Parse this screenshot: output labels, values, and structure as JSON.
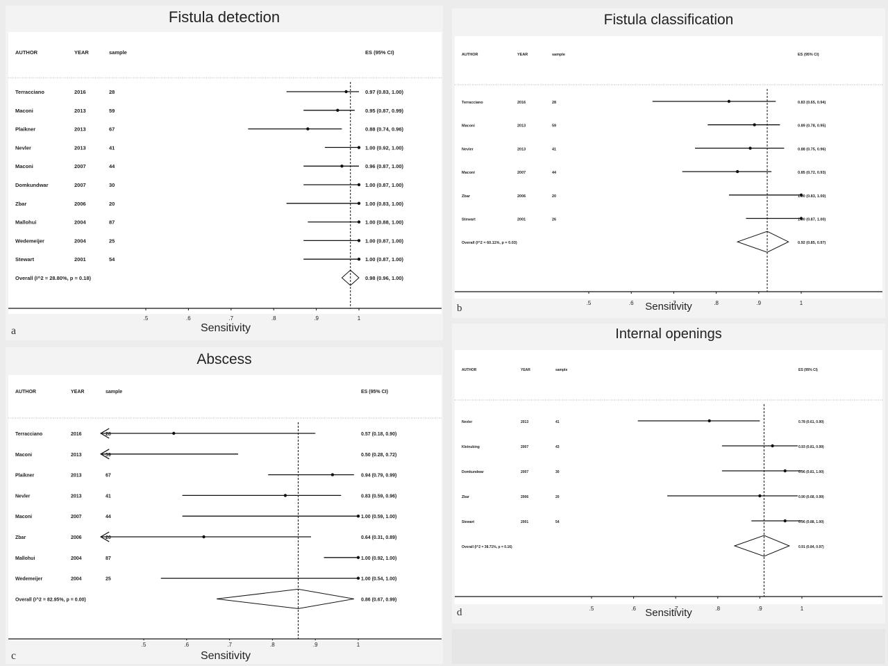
{
  "chart_data": [
    {
      "panel_letter": "a",
      "type": "forest",
      "title": "Fistula detection",
      "xlabel": "Sensitivity",
      "xlim": [
        0.2,
        1.0
      ],
      "x_ticks": [
        ".5",
        ".6",
        ".7",
        ".8",
        ".9",
        "1"
      ],
      "x_tick_values": [
        0.5,
        0.6,
        0.7,
        0.8,
        0.9,
        1.0
      ],
      "reference_line": 0.98,
      "headers": {
        "author": "AUTHOR",
        "year": "YEAR",
        "sample": "sample",
        "es": "ES (95% CI)"
      },
      "studies": [
        {
          "author": "Terracciano",
          "year": "2016",
          "sample": "28",
          "es": 0.97,
          "lo": 0.83,
          "hi": 1.0,
          "es_label": "0.97 (0.83, 1.00)"
        },
        {
          "author": "Maconi",
          "year": "2013",
          "sample": "59",
          "es": 0.95,
          "lo": 0.87,
          "hi": 0.99,
          "es_label": "0.95 (0.87, 0.99)"
        },
        {
          "author": "Plaikner",
          "year": "2013",
          "sample": "67",
          "es": 0.88,
          "lo": 0.74,
          "hi": 0.96,
          "es_label": "0.88 (0.74, 0.96)"
        },
        {
          "author": "Nevler",
          "year": "2013",
          "sample": "41",
          "es": 1.0,
          "lo": 0.92,
          "hi": 1.0,
          "es_label": "1.00 (0.92, 1.00)"
        },
        {
          "author": "Maconi",
          "year": "2007",
          "sample": "44",
          "es": 0.96,
          "lo": 0.87,
          "hi": 1.0,
          "es_label": "0.96 (0.87, 1.00)"
        },
        {
          "author": "Domkundwar",
          "year": "2007",
          "sample": "30",
          "es": 1.0,
          "lo": 0.87,
          "hi": 1.0,
          "es_label": "1.00 (0.87, 1.00)"
        },
        {
          "author": "Zbar",
          "year": "2006",
          "sample": "20",
          "es": 1.0,
          "lo": 0.83,
          "hi": 1.0,
          "es_label": "1.00 (0.83, 1.00)"
        },
        {
          "author": "Mallohui",
          "year": "2004",
          "sample": "87",
          "es": 1.0,
          "lo": 0.88,
          "hi": 1.0,
          "es_label": "1.00 (0.88, 1.00)"
        },
        {
          "author": "Wedemeijer",
          "year": "2004",
          "sample": "25",
          "es": 1.0,
          "lo": 0.87,
          "hi": 1.0,
          "es_label": "1.00 (0.87, 1.00)"
        },
        {
          "author": "Stewart",
          "year": "2001",
          "sample": "54",
          "es": 1.0,
          "lo": 0.87,
          "hi": 1.0,
          "es_label": "1.00 (0.87, 1.00)"
        }
      ],
      "overall": {
        "label": "Overall  (I^2 = 28.80%, p = 0.18)",
        "es": 0.98,
        "lo": 0.96,
        "hi": 1.0,
        "es_label": "0.98 (0.96, 1.00)"
      }
    },
    {
      "panel_letter": "b",
      "type": "forest",
      "title": "Fistula classification",
      "xlabel": "Sensitivity",
      "xlim": [
        0.2,
        1.0
      ],
      "x_ticks": [
        ".5",
        ".6",
        ".7",
        ".8",
        ".9",
        "1"
      ],
      "x_tick_values": [
        0.5,
        0.6,
        0.7,
        0.8,
        0.9,
        1.0
      ],
      "reference_line": 0.92,
      "headers": {
        "author": "AUTHOR",
        "year": "YEAR",
        "sample": "sample",
        "es": "ES (95% CI)"
      },
      "studies": [
        {
          "author": "Terracciano",
          "year": "2016",
          "sample": "28",
          "es": 0.83,
          "lo": 0.65,
          "hi": 0.94,
          "es_label": "0.83 (0.65, 0.94)"
        },
        {
          "author": "Maconi",
          "year": "2013",
          "sample": "59",
          "es": 0.89,
          "lo": 0.78,
          "hi": 0.95,
          "es_label": "0.89 (0.78, 0.95)"
        },
        {
          "author": "Nevler",
          "year": "2013",
          "sample": "41",
          "es": 0.88,
          "lo": 0.75,
          "hi": 0.96,
          "es_label": "0.88 (0.75, 0.96)"
        },
        {
          "author": "Maconi",
          "year": "2007",
          "sample": "44",
          "es": 0.85,
          "lo": 0.72,
          "hi": 0.93,
          "es_label": "0.85 (0.72, 0.93)"
        },
        {
          "author": "Zbar",
          "year": "2006",
          "sample": "20",
          "es": 1.0,
          "lo": 0.83,
          "hi": 1.0,
          "es_label": "1.00 (0.83, 1.00)"
        },
        {
          "author": "Stewart",
          "year": "2001",
          "sample": "26",
          "es": 1.0,
          "lo": 0.87,
          "hi": 1.0,
          "es_label": "1.00 (0.87, 1.00)"
        }
      ],
      "overall": {
        "label": "Overall  (I^2 = 60.11%, p = 0.03)",
        "es": 0.92,
        "lo": 0.85,
        "hi": 0.97,
        "es_label": "0.92 (0.85, 0.97)"
      }
    },
    {
      "panel_letter": "c",
      "type": "forest",
      "title": "Abscess",
      "xlabel": "Sensitivity",
      "xlim": [
        0.2,
        1.0
      ],
      "x_ticks": [
        ".5",
        ".6",
        ".7",
        ".8",
        ".9",
        "1"
      ],
      "x_tick_values": [
        0.5,
        0.6,
        0.7,
        0.8,
        0.9,
        1.0
      ],
      "reference_line": 0.86,
      "headers": {
        "author": "AUTHOR",
        "year": "YEAR",
        "sample": "sample",
        "es": "ES (95% CI)"
      },
      "studies": [
        {
          "author": "Terracciano",
          "year": "2016",
          "sample": "28",
          "es": 0.57,
          "lo": 0.18,
          "hi": 0.9,
          "es_label": "0.57 (0.18, 0.90)",
          "arrow_left": true
        },
        {
          "author": "Maconi",
          "year": "2013",
          "sample": "59",
          "es": 0.5,
          "lo": 0.28,
          "hi": 0.72,
          "es_label": "0.50 (0.28, 0.72)",
          "arrow_left": true,
          "hide_point": true
        },
        {
          "author": "Plaikner",
          "year": "2013",
          "sample": "67",
          "es": 0.94,
          "lo": 0.79,
          "hi": 0.99,
          "es_label": "0.94 (0.79, 0.99)"
        },
        {
          "author": "Nevler",
          "year": "2013",
          "sample": "41",
          "es": 0.83,
          "lo": 0.59,
          "hi": 0.96,
          "es_label": "0.83 (0.59, 0.96)"
        },
        {
          "author": "Maconi",
          "year": "2007",
          "sample": "44",
          "es": 1.0,
          "lo": 0.59,
          "hi": 1.0,
          "es_label": "1.00 (0.59, 1.00)"
        },
        {
          "author": "Zbar",
          "year": "2006",
          "sample": "20",
          "es": 0.64,
          "lo": 0.31,
          "hi": 0.89,
          "es_label": "0.64 (0.31, 0.89)",
          "arrow_left": true
        },
        {
          "author": "Mallohui",
          "year": "2004",
          "sample": "87",
          "es": 1.0,
          "lo": 0.92,
          "hi": 1.0,
          "es_label": "1.00 (0.92, 1.00)"
        },
        {
          "author": "Wedemeijer",
          "year": "2004",
          "sample": "25",
          "es": 1.0,
          "lo": 0.54,
          "hi": 1.0,
          "es_label": "1.00 (0.54, 1.00)"
        }
      ],
      "overall": {
        "label": "Overall  (I^2 = 82.95%, p = 0.00)",
        "es": 0.86,
        "lo": 0.67,
        "hi": 0.99,
        "es_label": "0.86 (0.67, 0.99)"
      }
    },
    {
      "panel_letter": "d",
      "type": "forest",
      "title": "Internal openings",
      "xlabel": "Sensitivity",
      "xlim": [
        0.2,
        1.0
      ],
      "x_ticks": [
        ".5",
        ".6",
        ".7",
        ".8",
        ".9",
        "1"
      ],
      "x_tick_values": [
        0.5,
        0.6,
        0.7,
        0.8,
        0.9,
        1.0
      ],
      "reference_line": 0.91,
      "headers": {
        "author": "AUTHOR",
        "year": "YEAR",
        "sample": "sample",
        "es": "ES (95% CI)"
      },
      "studies": [
        {
          "author": "Nevler",
          "year": "2013",
          "sample": "41",
          "es": 0.78,
          "lo": 0.61,
          "hi": 0.9,
          "es_label": "0.78 (0.61, 0.90)"
        },
        {
          "author": "Kleinubing",
          "year": "2007",
          "sample": "43",
          "es": 0.93,
          "lo": 0.81,
          "hi": 0.99,
          "es_label": "0.93 (0.81, 0.99)"
        },
        {
          "author": "Domkundwar",
          "year": "2007",
          "sample": "30",
          "es": 0.96,
          "lo": 0.81,
          "hi": 1.0,
          "es_label": "0.96 (0.81, 1.00)"
        },
        {
          "author": "Zbar",
          "year": "2006",
          "sample": "20",
          "es": 0.9,
          "lo": 0.68,
          "hi": 0.99,
          "es_label": "0.90 (0.68, 0.99)"
        },
        {
          "author": "Stewart",
          "year": "2001",
          "sample": "54",
          "es": 0.96,
          "lo": 0.88,
          "hi": 1.0,
          "es_label": "0.96 (0.88, 1.00)"
        }
      ],
      "overall": {
        "label": "Overall  (I^2 = 38.71%, p = 0.16)",
        "es": 0.91,
        "lo": 0.84,
        "hi": 0.97,
        "es_label": "0.91 (0.84, 0.97)"
      }
    }
  ]
}
